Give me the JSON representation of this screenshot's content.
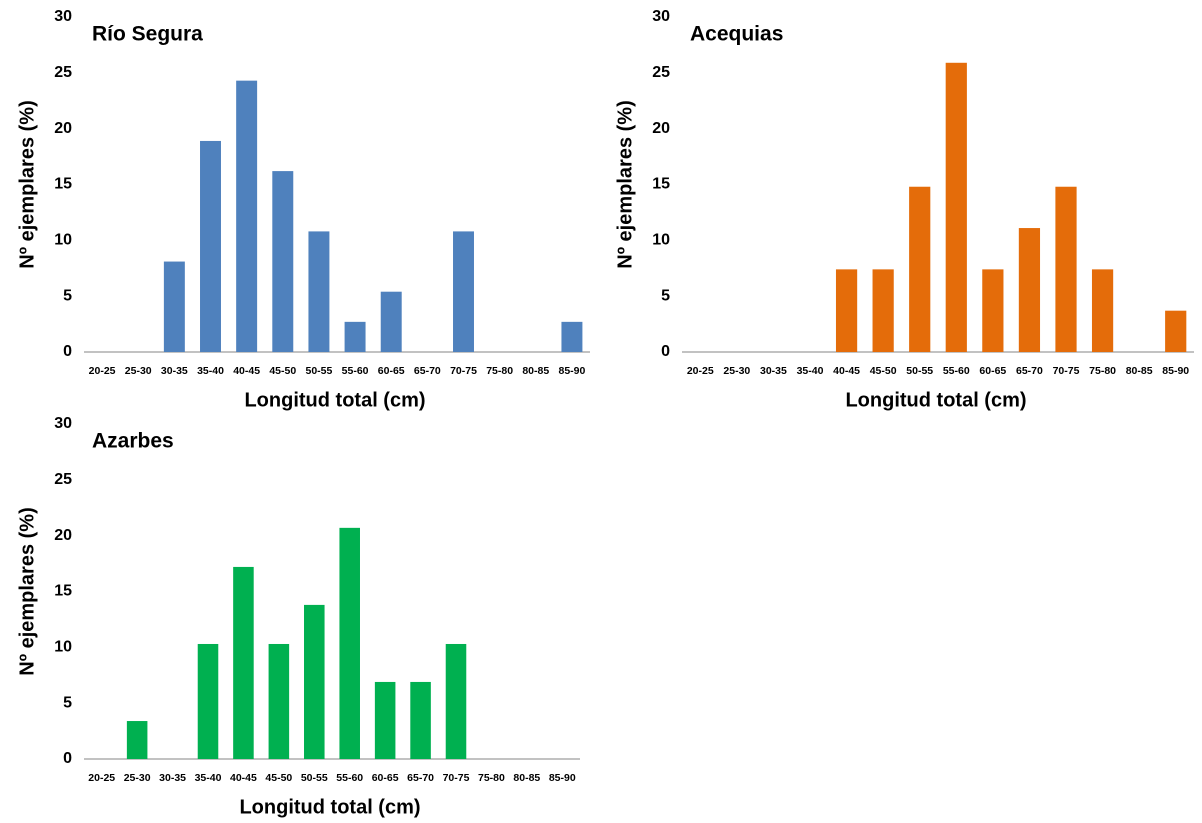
{
  "chart_data": [
    {
      "type": "bar",
      "title": "Río Segura",
      "categories": [
        "20-25",
        "25-30",
        "30-35",
        "35-40",
        "40-45",
        "45-50",
        "50-55",
        "55-60",
        "60-65",
        "65-70",
        "70-75",
        "75-80",
        "80-85",
        "85-90"
      ],
      "values": [
        0,
        0,
        8.1,
        18.9,
        24.3,
        16.2,
        10.8,
        2.7,
        5.4,
        0,
        10.8,
        0,
        0,
        2.7
      ],
      "color": "#4f81bd",
      "ylim": [
        0,
        30
      ],
      "yticks": [
        0,
        5,
        10,
        15,
        20,
        25,
        30
      ],
      "xlabel": "Longitud total (cm)",
      "ylabel": "Nº ejemplares (%)"
    },
    {
      "type": "bar",
      "title": "Acequias",
      "categories": [
        "20-25",
        "25-30",
        "30-35",
        "35-40",
        "40-45",
        "45-50",
        "50-55",
        "55-60",
        "60-65",
        "65-70",
        "70-75",
        "75-80",
        "80-85",
        "85-90"
      ],
      "values": [
        0,
        0,
        0,
        0,
        7.4,
        7.4,
        14.8,
        25.9,
        7.4,
        11.1,
        14.8,
        7.4,
        0,
        3.7
      ],
      "color": "#e46c0a",
      "ylim": [
        0,
        30
      ],
      "yticks": [
        0,
        5,
        10,
        15,
        20,
        25,
        30
      ],
      "xlabel": "Longitud total (cm)",
      "ylabel": "Nº ejemplares (%)"
    },
    {
      "type": "bar",
      "title": "Azarbes",
      "categories": [
        "20-25",
        "25-30",
        "30-35",
        "35-40",
        "40-45",
        "45-50",
        "50-55",
        "55-60",
        "60-65",
        "65-70",
        "70-75",
        "75-80",
        "80-85",
        "85-90"
      ],
      "values": [
        0,
        3.4,
        0,
        10.3,
        17.2,
        10.3,
        13.8,
        20.7,
        6.9,
        6.9,
        10.3,
        0,
        0,
        0
      ],
      "color": "#00b050",
      "ylim": [
        0,
        30
      ],
      "yticks": [
        0,
        5,
        10,
        15,
        20,
        25,
        30
      ],
      "xlabel": "Longitud total (cm)",
      "ylabel": "Nº ejemplares (%)"
    }
  ]
}
